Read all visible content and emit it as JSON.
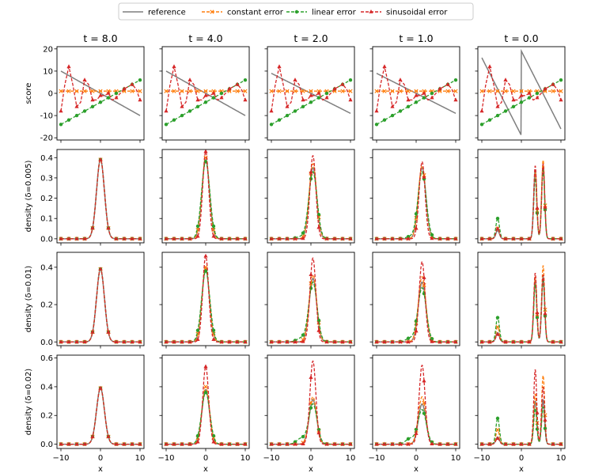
{
  "chart_data": {
    "type": "line",
    "legend": {
      "placement": "top-center",
      "entries": [
        {
          "key": "reference",
          "label": "reference",
          "color": "#7f7f7f",
          "dash": "solid",
          "marker": "none"
        },
        {
          "key": "constant",
          "label": "constant error",
          "color": "#ff7f0e",
          "dash": "dashed",
          "marker": "x"
        },
        {
          "key": "linear",
          "label": "linear error",
          "color": "#2ca02c",
          "dash": "dashed",
          "marker": "circle"
        },
        {
          "key": "sinusoidal",
          "label": "sinusoidal error",
          "color": "#d62728",
          "dash": "dashed",
          "marker": "triangle"
        }
      ]
    },
    "columns": [
      {
        "title": "t = 8.0",
        "t": 8.0
      },
      {
        "title": "t = 4.0",
        "t": 4.0
      },
      {
        "title": "t = 2.0",
        "t": 2.0
      },
      {
        "title": "t = 1.0",
        "t": 1.0
      },
      {
        "title": "t = 0.0",
        "t": 0.0
      }
    ],
    "rows": [
      {
        "ylabel": "score",
        "kind": "score",
        "ylim": [
          -21,
          21
        ],
        "yticks": [
          -20,
          -10,
          0,
          10,
          20
        ]
      },
      {
        "ylabel": "density (δ=0.005)",
        "kind": "density",
        "delta": 0.005,
        "ylim": [
          -0.02,
          0.44
        ],
        "yticks": [
          0.0,
          0.1,
          0.2,
          0.3,
          0.4
        ]
      },
      {
        "ylabel": "density (δ=0.01)",
        "kind": "density",
        "delta": 0.01,
        "ylim": [
          -0.02,
          0.48
        ],
        "yticks": [
          0.0,
          0.2,
          0.4
        ]
      },
      {
        "ylabel": "density (δ=0.02)",
        "kind": "density",
        "delta": 0.02,
        "ylim": [
          -0.03,
          0.62
        ],
        "yticks": [
          0.0,
          0.2,
          0.4,
          0.6
        ]
      }
    ],
    "xlabel": "x",
    "xlim": [
      -11,
      11
    ],
    "xticks": [
      -10,
      0,
      10
    ],
    "grid": false,
    "series_models": {
      "reference_score": {
        "description_t_gt0": "line from ~+10 at x=-10 to ~-10 at x=10 (slope about -1 for t>=1)",
        "t0_sawtooth": {
          "x": [
            -10,
            0,
            0,
            10
          ],
          "y": [
            16,
            -19,
            19,
            -16
          ]
        },
        "values_t_gt0": {
          "t8": [
            10,
            -10
          ],
          "t4": [
            10,
            -10
          ],
          "t2": [
            9,
            -9
          ],
          "t1": [
            9,
            -9
          ]
        }
      },
      "constant_score": {
        "value": 1.0
      },
      "linear_score": {
        "x": [
          -10,
          10
        ],
        "y": [
          -14,
          6
        ]
      },
      "sinusoidal_score": {
        "x": [
          -10,
          -9,
          -8,
          -7,
          -6,
          -5,
          -4,
          -3,
          -2,
          -1,
          0,
          1,
          2,
          3,
          4,
          5,
          6,
          7,
          8,
          9,
          10
        ],
        "y": [
          -8,
          4,
          12,
          4,
          -6,
          -4,
          6,
          4,
          -3,
          -3,
          -1,
          -1,
          0,
          -3,
          -2,
          0,
          2,
          3,
          4,
          2,
          -3
        ]
      },
      "density_peaks": {
        "t8": [
          {
            "mu": 0,
            "sigma": 1.0,
            "h": {
              "reference": 0.39,
              "constant": 0.39,
              "linear": 0.39,
              "sinusoidal": 0.39
            }
          }
        ],
        "t4_delta0.005": {
          "mu": 0,
          "h": {
            "reference": 0.39,
            "constant": 0.4,
            "linear": 0.38,
            "sinusoidal": 0.43
          }
        },
        "t4_delta0.01": {
          "mu": 0,
          "h": {
            "reference": 0.39,
            "constant": 0.4,
            "linear": 0.38,
            "sinusoidal": 0.46
          }
        },
        "t4_delta0.02": {
          "mu": 0,
          "h": {
            "reference": 0.38,
            "constant": 0.4,
            "linear": 0.36,
            "sinusoidal": 0.54
          }
        },
        "t2_delta0.005": {
          "mu": 0.5,
          "h": {
            "reference": 0.35,
            "constant": 0.37,
            "linear": 0.33,
            "sinusoidal": 0.41
          }
        },
        "t2_delta0.01": {
          "mu": 0.5,
          "h": {
            "reference": 0.34,
            "constant": 0.36,
            "linear": 0.32,
            "sinusoidal": 0.45
          }
        },
        "t2_delta0.02": {
          "mu": 0.5,
          "h": {
            "reference": 0.31,
            "constant": 0.33,
            "linear": 0.28,
            "sinusoidal": 0.58
          }
        },
        "t1_delta0.005": {
          "mu": 1.5,
          "h": {
            "reference": 0.35,
            "constant": 0.36,
            "linear": 0.33,
            "sinusoidal": 0.38
          }
        },
        "t1_delta0.01": {
          "mu": 1.5,
          "h": {
            "reference": 0.32,
            "constant": 0.35,
            "linear": 0.29,
            "sinusoidal": 0.43
          }
        },
        "t1_delta0.02": {
          "mu": 1.5,
          "h": {
            "reference": 0.28,
            "constant": 0.33,
            "linear": 0.24,
            "sinusoidal": 0.55
          }
        },
        "t0_delta0.005": {
          "left_mu": -6,
          "right_mu1": 3.5,
          "right_mu2": 5.5,
          "h_left": {
            "reference": 0.04,
            "constant": 0.05,
            "linear": 0.1,
            "sinusoidal": 0.05
          },
          "h_r1": {
            "reference": 0.34,
            "constant": 0.33,
            "linear": 0.3,
            "sinusoidal": 0.36
          },
          "h_r2": {
            "reference": 0.36,
            "constant": 0.39,
            "linear": 0.34,
            "sinusoidal": 0.37
          }
        },
        "t0_delta0.01": {
          "left_mu": -6,
          "right_mu1": 3.5,
          "right_mu2": 5.5,
          "h_left": {
            "reference": 0.05,
            "constant": 0.08,
            "linear": 0.13,
            "sinusoidal": 0.04
          },
          "h_r1": {
            "reference": 0.33,
            "constant": 0.35,
            "linear": 0.31,
            "sinusoidal": 0.37
          },
          "h_r2": {
            "reference": 0.35,
            "constant": 0.41,
            "linear": 0.33,
            "sinusoidal": 0.36
          }
        },
        "t0_delta0.02": {
          "left_mu": -6,
          "right_mu1": 3.5,
          "right_mu2": 5.5,
          "h_left": {
            "reference": 0.05,
            "constant": 0.1,
            "linear": 0.18,
            "sinusoidal": 0.04
          },
          "h_r1": {
            "reference": 0.3,
            "constant": 0.35,
            "linear": 0.25,
            "sinusoidal": 0.52
          },
          "h_r2": {
            "reference": 0.31,
            "constant": 0.48,
            "linear": 0.26,
            "sinusoidal": 0.4
          }
        }
      }
    }
  }
}
